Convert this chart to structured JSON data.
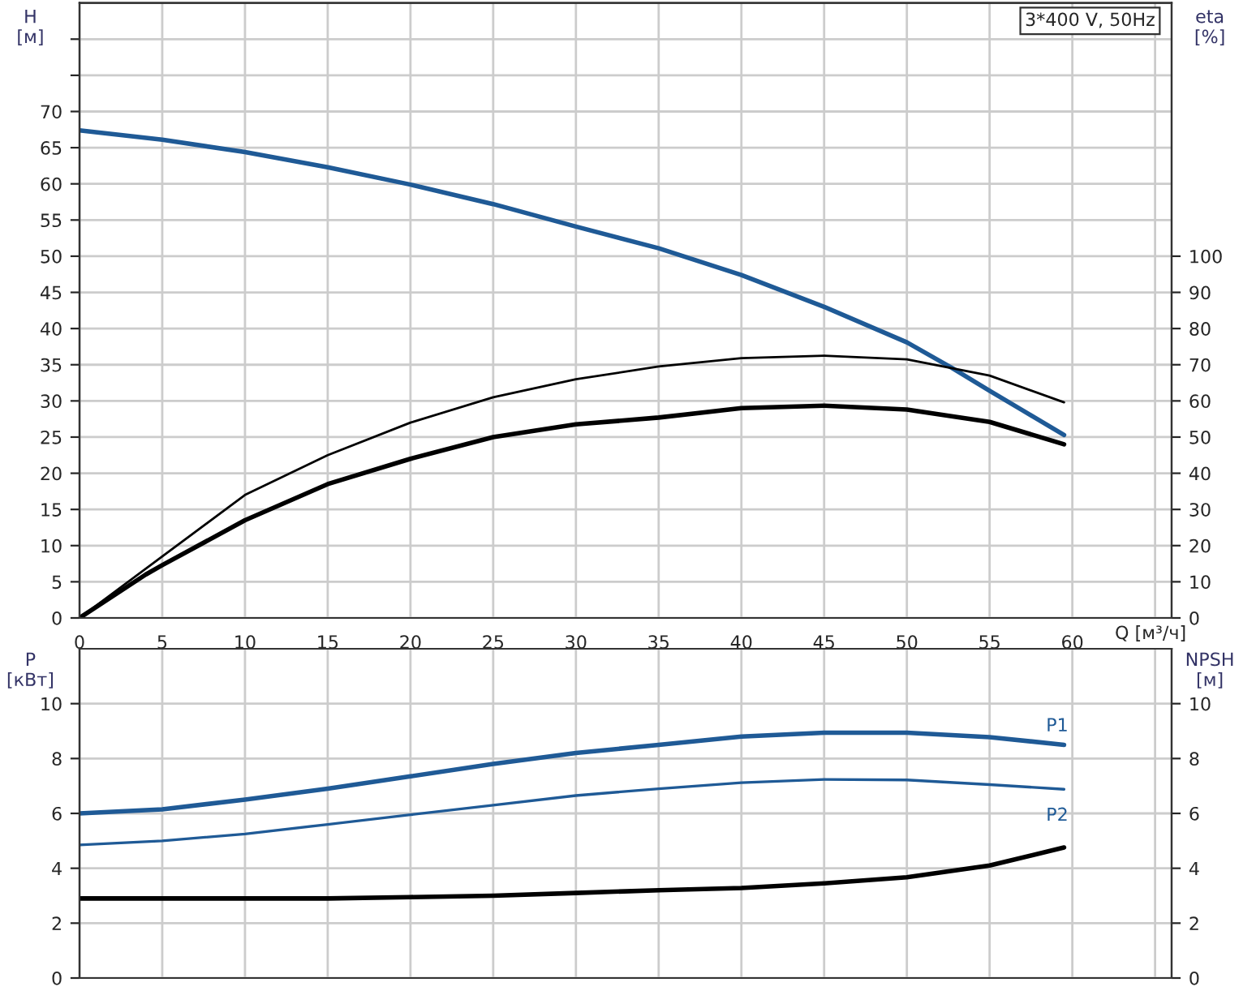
{
  "chart_data": [
    {
      "type": "line",
      "xlabel": "Q [м³/ч]",
      "ylabel": "H\n[м]",
      "y2label": "eta\n[%]",
      "annotations": [
        "3*400 V, 50Hz"
      ],
      "xlim": [
        0,
        66
      ],
      "xticks": [
        0,
        5,
        10,
        15,
        20,
        25,
        30,
        35,
        40,
        45,
        50,
        55,
        60,
        {
          "value": 65,
          "label": null
        }
      ],
      "ylim": [
        0,
        85
      ],
      "yticks": [
        0,
        5,
        10,
        15,
        20,
        25,
        30,
        35,
        40,
        45,
        50,
        55,
        60,
        65,
        70,
        {
          "value": 75,
          "label": null
        },
        {
          "value": 80,
          "label": null
        }
      ],
      "y2lim": [
        0,
        170
      ],
      "y2ticks": [
        0,
        10,
        20,
        30,
        40,
        50,
        60,
        70,
        80,
        90,
        100
      ],
      "grid": true,
      "legend": false,
      "series": [
        {
          "color": "#1f5a96",
          "x": [
            0,
            5,
            10,
            15,
            20,
            25,
            30,
            35,
            40,
            45,
            50,
            52.7,
            55,
            59.5
          ],
          "values": [
            67.4,
            66.1,
            64.4,
            62.3,
            59.9,
            57.2,
            54.1,
            51.1,
            47.4,
            43.0,
            38.1,
            34.6,
            31.4,
            25.3
          ]
        },
        {
          "color": "#000000",
          "axis": "y2",
          "x": [
            0,
            5,
            10,
            15,
            20,
            25,
            30,
            35,
            40,
            45,
            50,
            55,
            59.5
          ],
          "values": [
            0,
            17,
            34,
            45,
            54,
            61,
            66,
            69.5,
            71.8,
            72.5,
            71.5,
            67,
            59.6
          ]
        },
        {
          "color": "#000000",
          "axis": "y2",
          "x": [
            0,
            4,
            5,
            10,
            15,
            20,
            25,
            30,
            35,
            40,
            45,
            50,
            55,
            59.5
          ],
          "values": [
            0,
            12,
            14.6,
            27,
            37,
            44,
            50,
            53.5,
            55.4,
            58,
            58.7,
            57.6,
            54.2,
            48
          ]
        }
      ]
    },
    {
      "type": "line",
      "ylabel": "P\n[кВт]",
      "y2label": "NPSH\n[м]",
      "tick_labels": "y",
      "xlim": [
        0,
        66
      ],
      "xticks": [
        0,
        5,
        10,
        15,
        20,
        25,
        30,
        35,
        40,
        45,
        50,
        55,
        60,
        65
      ],
      "ylim": [
        0,
        12
      ],
      "yticks": [
        0,
        2,
        4,
        6,
        8,
        10
      ],
      "y2lim": [
        0,
        12
      ],
      "y2ticks": [
        0,
        2,
        4,
        6,
        8,
        10
      ],
      "grid": true,
      "legend": false,
      "series": [
        {
          "name": "P1",
          "color": "#1f5a96",
          "x": [
            0,
            5,
            10,
            15,
            20,
            25,
            30,
            35,
            40,
            45,
            50,
            55,
            59.5
          ],
          "values": [
            6.0,
            6.15,
            6.5,
            6.9,
            7.35,
            7.8,
            8.2,
            8.5,
            8.8,
            8.94,
            8.94,
            8.78,
            8.5
          ]
        },
        {
          "name": "P2",
          "color": "#1f5a96",
          "x": [
            0,
            5,
            10,
            15,
            20,
            25,
            30,
            35,
            40,
            45,
            50,
            55,
            59.5
          ],
          "values": [
            4.85,
            5.0,
            5.25,
            5.6,
            5.95,
            6.3,
            6.65,
            6.9,
            7.12,
            7.24,
            7.22,
            7.05,
            6.88
          ]
        },
        {
          "color": "#000000",
          "axis": "y2",
          "x": [
            0,
            5,
            10,
            15,
            20,
            25,
            30,
            35,
            40,
            45,
            50,
            55,
            59.5
          ],
          "values": [
            2.9,
            2.9,
            2.9,
            2.9,
            2.95,
            3.0,
            3.1,
            3.2,
            3.28,
            3.45,
            3.67,
            4.1,
            4.76
          ]
        }
      ]
    }
  ]
}
